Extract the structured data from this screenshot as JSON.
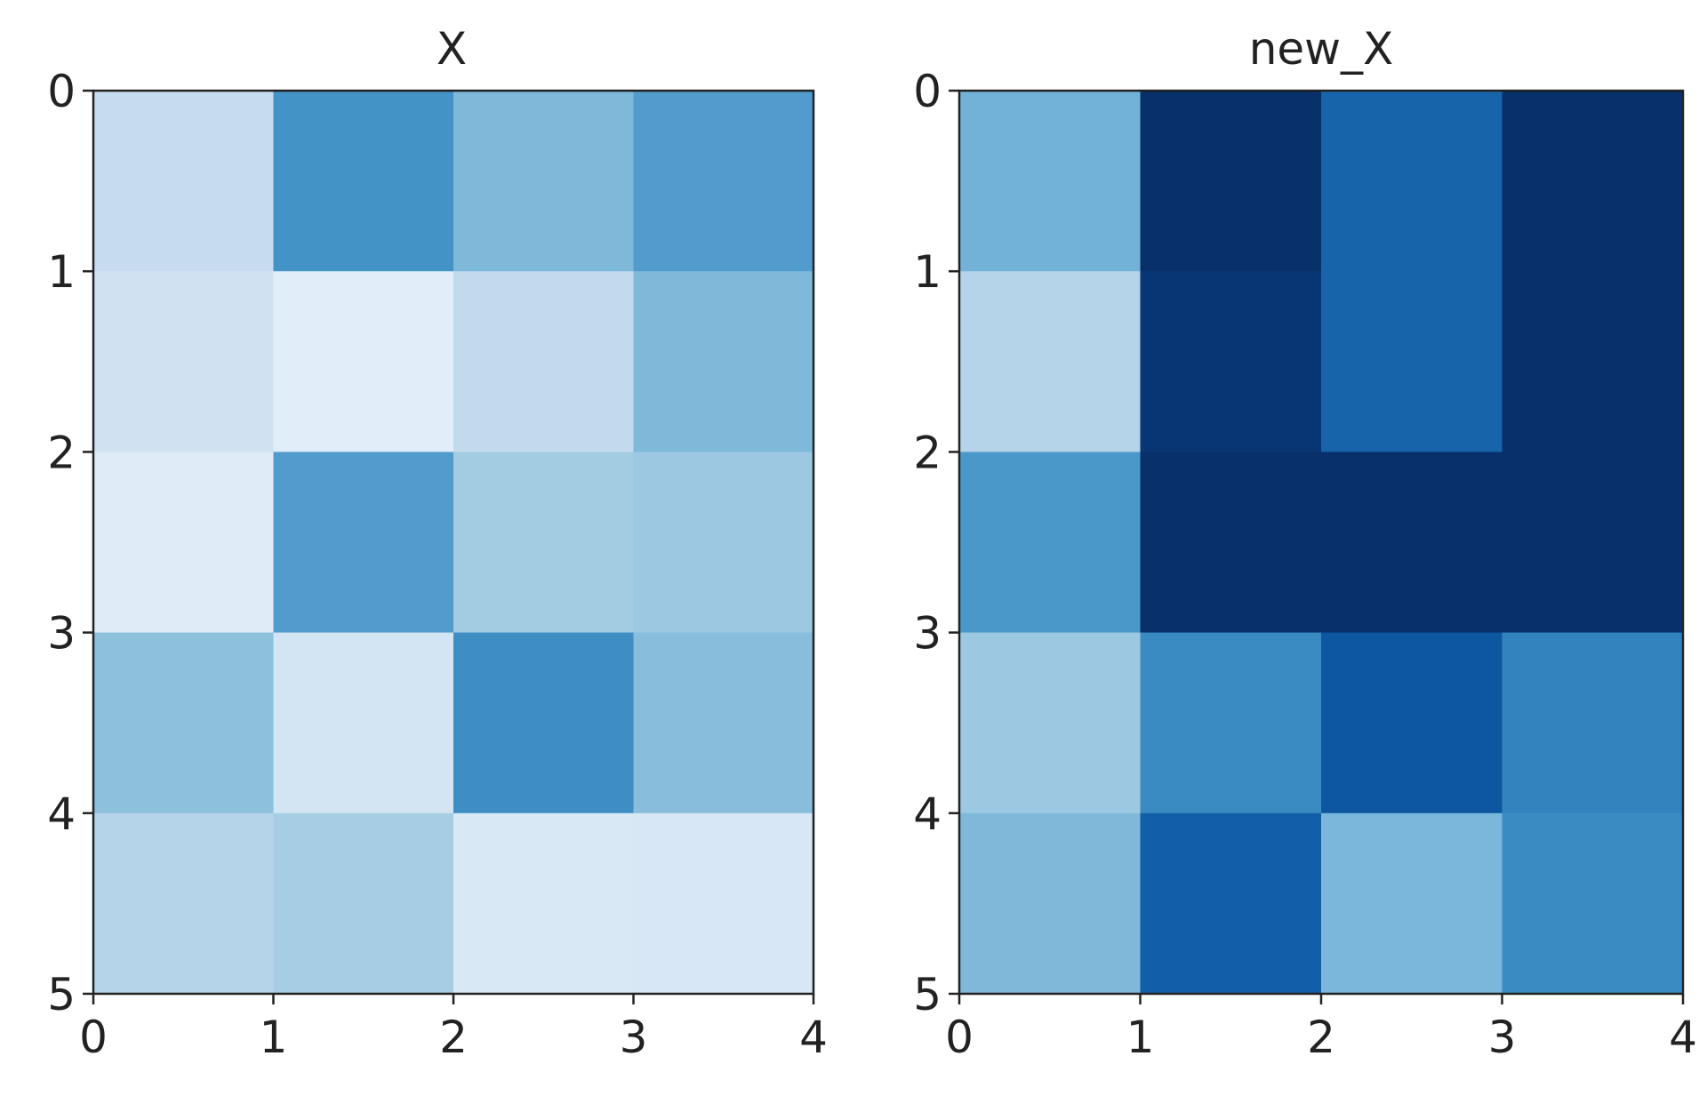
{
  "chart_data": [
    {
      "type": "heatmap",
      "title": "X",
      "colormap": "Blues",
      "xlim": [
        0,
        4
      ],
      "ylim": [
        0,
        5
      ],
      "y_inverted": true,
      "xticks": [
        "0",
        "1",
        "2",
        "3",
        "4"
      ],
      "yticks": [
        "0",
        "1",
        "2",
        "3",
        "4",
        "5"
      ],
      "grid": false,
      "values": [
        [
          0.25,
          0.62,
          0.45,
          0.58
        ],
        [
          0.2,
          0.11,
          0.26,
          0.45
        ],
        [
          0.12,
          0.58,
          0.36,
          0.38
        ],
        [
          0.42,
          0.18,
          0.64,
          0.43
        ],
        [
          0.3,
          0.35,
          0.15,
          0.16
        ]
      ]
    },
    {
      "type": "heatmap",
      "title": "new_X",
      "colormap": "Blues",
      "xlim": [
        0,
        4
      ],
      "ylim": [
        0,
        5
      ],
      "y_inverted": true,
      "xticks": [
        "0",
        "1",
        "2",
        "3",
        "4"
      ],
      "yticks": [
        "0",
        "1",
        "2",
        "3",
        "4",
        "5"
      ],
      "grid": false,
      "values": [
        [
          0.48,
          1.0,
          0.8,
          1.0
        ],
        [
          0.3,
          0.98,
          0.8,
          1.0
        ],
        [
          0.6,
          1.0,
          1.0,
          1.0
        ],
        [
          0.38,
          0.65,
          0.85,
          0.68
        ],
        [
          0.45,
          0.82,
          0.46,
          0.65
        ]
      ]
    }
  ]
}
